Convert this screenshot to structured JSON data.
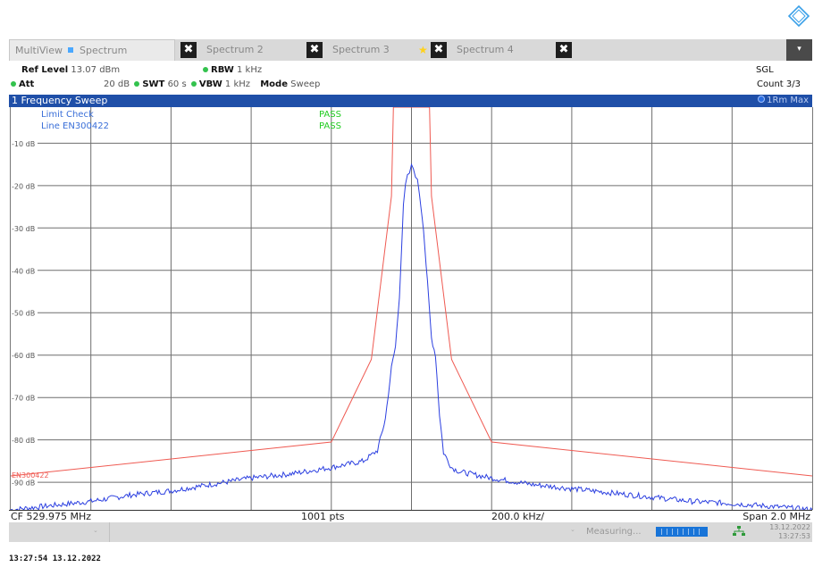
{
  "tabs": [
    {
      "label": "MultiView",
      "sub": "Spectrum"
    },
    {
      "label": "Spectrum 2"
    },
    {
      "label": "Spectrum 3"
    },
    {
      "label": "Spectrum 4"
    }
  ],
  "close_glyph": "✖",
  "settings": {
    "ref_level_label": "Ref Level",
    "ref_level_value": "13.07 dBm",
    "att_label": "Att",
    "att_value": "20 dB",
    "swt_label": "SWT",
    "swt_value": "60 s",
    "rbw_label": "RBW",
    "rbw_value": "1 kHz",
    "vbw_label": "VBW",
    "vbw_value": "1 kHz",
    "mode_label": "Mode",
    "mode_value": "Sweep",
    "sgl": "SGL",
    "count": "Count 3/3"
  },
  "window": {
    "title": "1 Frequency Sweep",
    "trace_label": "1Rm Max"
  },
  "limits": {
    "check_label": "Limit Check",
    "check_result": "PASS",
    "line_label": "Line EN300422",
    "line_result": "PASS",
    "line_marker": "EN300422"
  },
  "footer": {
    "cf": "CF 529.975 MHz",
    "pts": "1001 pts",
    "div": "200.0 kHz/",
    "span": "Span 2.0 MHz"
  },
  "status": {
    "measuring": "Measuring...",
    "date": "13.12.2022",
    "time": "13:27:53"
  },
  "timestamp": "13:27:54  13.12.2022",
  "colors": {
    "trace": "#2b3fe0",
    "limit_line": "#ef5a52",
    "pass": "#22cc22",
    "title_bar": "#1f4fa8",
    "label_blue": "#3a6fd8"
  },
  "chart_data": {
    "type": "line",
    "title": "",
    "xlabel": "",
    "ylabel": "",
    "xlim": [
      528.975,
      530.975
    ],
    "x_unit": "MHz",
    "ylim": [
      -96.5,
      -1.5
    ],
    "y_unit": "dB",
    "yticks": [
      {
        "value": -10,
        "label": "-10 dB"
      },
      {
        "value": -20,
        "label": "-20 dB"
      },
      {
        "value": -30,
        "label": "-30 dB"
      },
      {
        "value": -40,
        "label": "-40 dB"
      },
      {
        "value": -50,
        "label": "-50 dB"
      },
      {
        "value": -60,
        "label": "-60 dB"
      },
      {
        "value": -70,
        "label": "-70 dB"
      },
      {
        "value": -80,
        "label": "-80 dB"
      },
      {
        "value": -90,
        "label": "-90 dB"
      }
    ],
    "grid": true,
    "series": [
      {
        "name": "1Rm Max",
        "x": [
          528.975,
          529.075,
          529.175,
          529.275,
          529.375,
          529.475,
          529.575,
          529.675,
          529.775,
          529.855,
          529.89,
          529.91,
          529.925,
          529.935,
          529.945,
          529.955,
          529.96,
          529.965,
          529.97,
          529.975,
          529.98,
          529.985,
          529.99,
          529.995,
          530.005,
          530.015,
          530.025,
          530.035,
          530.045,
          530.055,
          530.075,
          530.095,
          530.175,
          530.275,
          530.375,
          530.475,
          530.575,
          530.675,
          530.775,
          530.875,
          530.975
        ],
        "values": [
          -96.5,
          -95.5,
          -94.5,
          -93,
          -92,
          -90.5,
          -89,
          -88,
          -86.5,
          -85,
          -82.5,
          -75,
          -63,
          -58,
          -46,
          -25,
          -20,
          -18,
          -17,
          -15.5,
          -16,
          -17.5,
          -19,
          -22,
          -30,
          -43,
          -56,
          -60,
          -74,
          -83,
          -86.5,
          -87.5,
          -89,
          -90.5,
          -91.5,
          -92.5,
          -93.5,
          -94.5,
          -95,
          -95.7,
          -96.5
        ]
      },
      {
        "name": "EN300422",
        "x": [
          528.975,
          529.775,
          529.875,
          529.925,
          529.93,
          530.02,
          530.025,
          530.075,
          530.175,
          530.975
        ],
        "values": [
          -88.5,
          -80.5,
          -61,
          -22.5,
          -1.5,
          -1.5,
          -22.5,
          -61,
          -80.5,
          -88.5
        ]
      }
    ]
  }
}
